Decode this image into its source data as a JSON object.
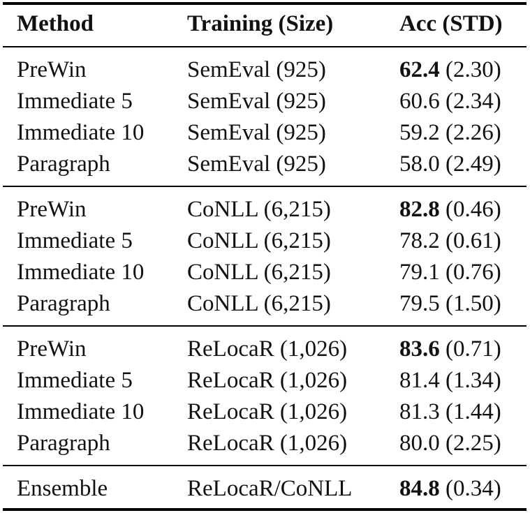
{
  "headers": {
    "method": "Method",
    "training": "Training (Size)",
    "acc": "Acc (STD)"
  },
  "groups": [
    {
      "rows": [
        {
          "method": "PreWin",
          "training": "SemEval (925)",
          "acc": "62.4",
          "std": "(2.30)",
          "best": true
        },
        {
          "method": "Immediate 5",
          "training": "SemEval (925)",
          "acc": "60.6",
          "std": "(2.34)",
          "best": false
        },
        {
          "method": "Immediate 10",
          "training": "SemEval (925)",
          "acc": "59.2",
          "std": "(2.26)",
          "best": false
        },
        {
          "method": "Paragraph",
          "training": "SemEval (925)",
          "acc": "58.0",
          "std": "(2.49)",
          "best": false
        }
      ]
    },
    {
      "rows": [
        {
          "method": "PreWin",
          "training": "CoNLL (6,215)",
          "acc": "82.8",
          "std": "(0.46)",
          "best": true
        },
        {
          "method": "Immediate 5",
          "training": "CoNLL (6,215)",
          "acc": "78.2",
          "std": "(0.61)",
          "best": false
        },
        {
          "method": "Immediate 10",
          "training": "CoNLL (6,215)",
          "acc": "79.1",
          "std": "(0.76)",
          "best": false
        },
        {
          "method": "Paragraph",
          "training": "CoNLL (6,215)",
          "acc": "79.5",
          "std": "(1.50)",
          "best": false
        }
      ]
    },
    {
      "rows": [
        {
          "method": "PreWin",
          "training": "ReLocaR (1,026)",
          "acc": "83.6",
          "std": "(0.71)",
          "best": true
        },
        {
          "method": "Immediate 5",
          "training": "ReLocaR (1,026)",
          "acc": "81.4",
          "std": "(1.34)",
          "best": false
        },
        {
          "method": "Immediate 10",
          "training": "ReLocaR (1,026)",
          "acc": "81.3",
          "std": "(1.44)",
          "best": false
        },
        {
          "method": "Paragraph",
          "training": "ReLocaR (1,026)",
          "acc": "80.0",
          "std": "(2.25)",
          "best": false
        }
      ]
    },
    {
      "rows": [
        {
          "method": "Ensemble",
          "training": "ReLocaR/CoNLL",
          "acc": "84.8",
          "std": "(0.34)",
          "best": true
        }
      ]
    }
  ]
}
